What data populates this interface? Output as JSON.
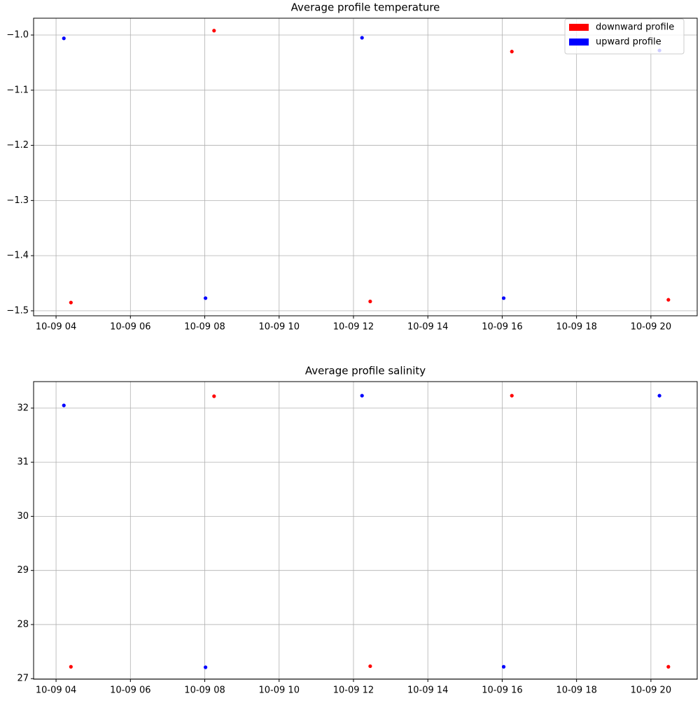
{
  "chart_data": [
    {
      "type": "scatter",
      "title": "Average profile temperature",
      "series": [
        {
          "name": "downward profile",
          "color": "#ff0000",
          "x": [
            4.4,
            8.25,
            12.45,
            16.26,
            20.47
          ],
          "values": [
            -1.485,
            -0.992,
            -1.483,
            -1.03,
            -1.48
          ]
        },
        {
          "name": "upward profile",
          "color": "#0000ff",
          "x": [
            4.21,
            8.02,
            12.23,
            16.04,
            20.23
          ],
          "values": [
            -1.006,
            -1.477,
            -1.005,
            -1.477,
            -1.028
          ]
        }
      ],
      "xlim": [
        3.396,
        21.245
      ],
      "xticks": [
        {
          "value": 4,
          "label": "10-09 04"
        },
        {
          "value": 6,
          "label": "10-09 06"
        },
        {
          "value": 8,
          "label": "10-09 08"
        },
        {
          "value": 10,
          "label": "10-09 10"
        },
        {
          "value": 12,
          "label": "10-09 12"
        },
        {
          "value": 14,
          "label": "10-09 14"
        },
        {
          "value": 16,
          "label": "10-09 16"
        },
        {
          "value": 18,
          "label": "10-09 18"
        },
        {
          "value": 20,
          "label": "10-09 20"
        }
      ],
      "ylim": [
        -1.509,
        -0.9695
      ],
      "yticks": [
        {
          "value": -1.5,
          "label": "−1.5"
        },
        {
          "value": -1.4,
          "label": "−1.4"
        },
        {
          "value": -1.3,
          "label": "−1.3"
        },
        {
          "value": -1.2,
          "label": "−1.2"
        },
        {
          "value": -1.1,
          "label": "−1.1"
        },
        {
          "value": -1.0,
          "label": "−1.0"
        }
      ],
      "grid": true,
      "legend": "upper right"
    },
    {
      "type": "scatter",
      "title": "Average profile salinity",
      "series": [
        {
          "color": "#ff0000",
          "x": [
            4.4,
            8.25,
            12.45,
            16.26,
            20.47
          ],
          "values": [
            27.22,
            32.22,
            27.23,
            32.23,
            27.22
          ]
        },
        {
          "color": "#0000ff",
          "x": [
            4.21,
            8.02,
            12.23,
            16.04,
            20.23
          ],
          "values": [
            32.05,
            27.21,
            32.23,
            27.22,
            32.23
          ]
        }
      ],
      "xlim": [
        3.396,
        21.245
      ],
      "xticks": [
        {
          "value": 4,
          "label": "10-09 04"
        },
        {
          "value": 6,
          "label": "10-09 06"
        },
        {
          "value": 8,
          "label": "10-09 08"
        },
        {
          "value": 10,
          "label": "10-09 10"
        },
        {
          "value": 12,
          "label": "10-09 12"
        },
        {
          "value": 14,
          "label": "10-09 14"
        },
        {
          "value": 16,
          "label": "10-09 16"
        },
        {
          "value": 18,
          "label": "10-09 18"
        },
        {
          "value": 20,
          "label": "10-09 20"
        }
      ],
      "ylim": [
        26.99,
        32.49
      ],
      "yticks": [
        27,
        28,
        29,
        30,
        31,
        32
      ],
      "grid": true
    }
  ]
}
